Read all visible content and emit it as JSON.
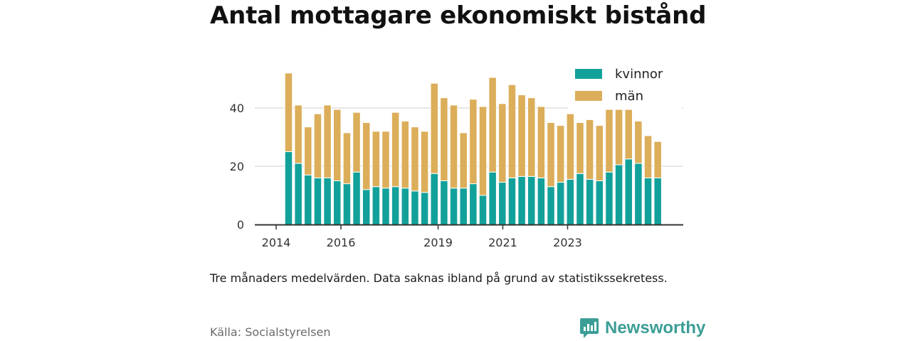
{
  "title": "Antal mottagare ekonomiskt bistånd",
  "note": "Tre månaders medelvärden. Data saknas ibland på grund av statistikssekretess.",
  "source": "Källa: Socialstyrelsen",
  "brand": {
    "name": "Newsworthy",
    "icon": "newsworthy-logo-icon",
    "color": "#3b9e96"
  },
  "chart_data": {
    "type": "bar",
    "stacked": true,
    "x_tick_labels": [
      "2014",
      "2016",
      "2019",
      "2021",
      "2023"
    ],
    "x_tick_index": [
      0.0,
      6.67,
      16.67,
      23.33,
      30.0
    ],
    "y_ticks": [
      0,
      20,
      40
    ],
    "ylim": [
      0,
      55
    ],
    "grid": "horizontal",
    "legend_position": "top-right",
    "series": [
      {
        "name": "kvinnor",
        "color": "#12a19a",
        "values": [
          25,
          21,
          17,
          16,
          16,
          15,
          14,
          18,
          12,
          13,
          12.5,
          13,
          12.5,
          11.5,
          11,
          17.5,
          15,
          12.5,
          12.5,
          14,
          10,
          18,
          14.5,
          16,
          16.5,
          16.5,
          16,
          13,
          14.5,
          15.5,
          17.5,
          15.5,
          15,
          18,
          20.5,
          22.5,
          21,
          16,
          16
        ]
      },
      {
        "name": "män",
        "color": "#dcae5a",
        "values": [
          27,
          20,
          16.5,
          22,
          25,
          24.5,
          17.5,
          20.5,
          23,
          19,
          19.5,
          25.5,
          23,
          22,
          21,
          31,
          28.5,
          28.5,
          19,
          29,
          30.5,
          32.5,
          27,
          32,
          28,
          27,
          24.5,
          22,
          19.5,
          22.5,
          17.5,
          20.5,
          19,
          21.5,
          19,
          17,
          14.5,
          14.5,
          12.5
        ]
      }
    ]
  }
}
